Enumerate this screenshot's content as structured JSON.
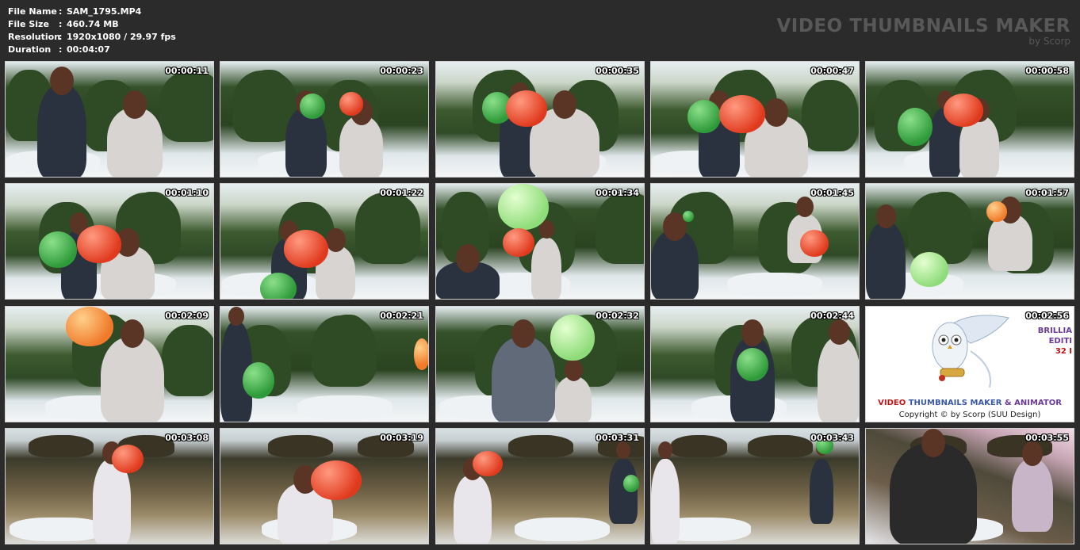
{
  "info": {
    "file_name_label": "File Name",
    "file_name": "SAM_1795.MP4",
    "file_size_label": "File Size",
    "file_size": "460.74 MB",
    "resolution_label": "Resolution",
    "resolution": "1920x1080 / 29.97 fps",
    "duration_label": "Duration",
    "duration": "00:04:07",
    "separator": ":"
  },
  "brand": {
    "title": "VIDEO THUMBNAILS MAKER",
    "subtitle": "by Scorp"
  },
  "thumbnails": [
    {
      "time": "00:00:11"
    },
    {
      "time": "00:00:23"
    },
    {
      "time": "00:00:35"
    },
    {
      "time": "00:00:47"
    },
    {
      "time": "00:00:58"
    },
    {
      "time": "00:01:10"
    },
    {
      "time": "00:01:22"
    },
    {
      "time": "00:01:34"
    },
    {
      "time": "00:01:45"
    },
    {
      "time": "00:01:57"
    },
    {
      "time": "00:02:09"
    },
    {
      "time": "00:02:21"
    },
    {
      "time": "00:02:32"
    },
    {
      "time": "00:02:44"
    },
    {
      "time": "00:02:56"
    },
    {
      "time": "00:03:08"
    },
    {
      "time": "00:03:19"
    },
    {
      "time": "00:03:31"
    },
    {
      "time": "00:03:43"
    },
    {
      "time": "00:03:55"
    }
  ],
  "promo": {
    "side_line1": "BRILLIA",
    "side_line2": "EDITI",
    "side_line3": "32 I",
    "title_part1": "VIDEO",
    "title_part2": "THUMBNAILS MAKER",
    "title_part3": "& ANIMATOR",
    "copyright": "Copyright © by Scorp (SUU Design)"
  },
  "colors": {
    "background": "#2b2b2b",
    "brand_text": "#585858",
    "info_text": "#ffffff"
  }
}
